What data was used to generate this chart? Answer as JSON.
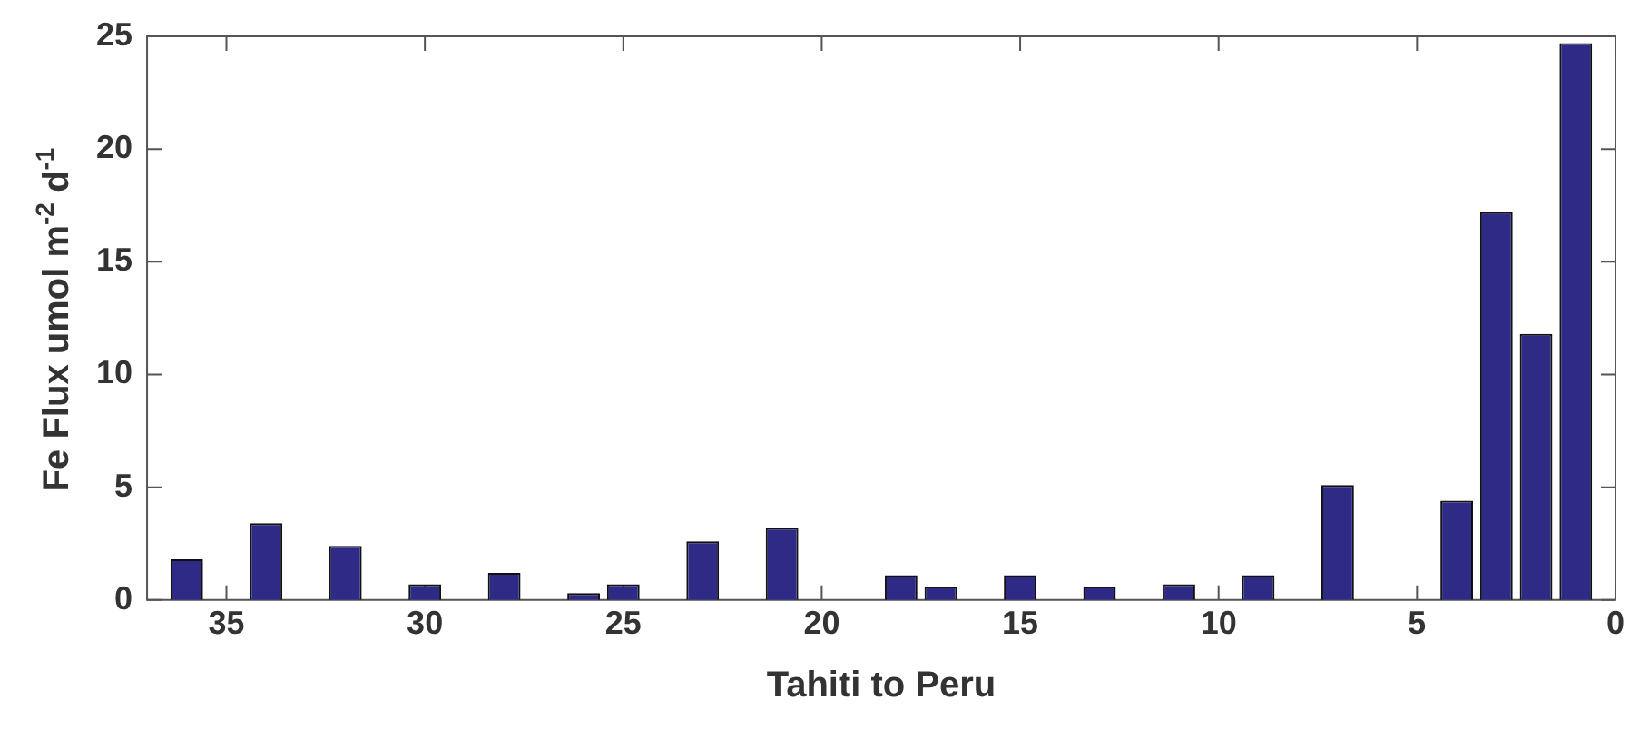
{
  "chart_data": {
    "type": "bar",
    "xlabel": "Tahiti to Peru",
    "ylabel": "Fe Flux umol m$^{-2}$ d$^{-1}$",
    "x": [
      36,
      34,
      32,
      30,
      28,
      26,
      25,
      23,
      21,
      18,
      17,
      15,
      13,
      11,
      9,
      7,
      4,
      3,
      2,
      1
    ],
    "values": [
      1.8,
      3.4,
      2.4,
      0.7,
      1.2,
      0.3,
      0.7,
      2.6,
      3.2,
      1.1,
      0.6,
      1.1,
      0.6,
      0.7,
      1.1,
      5.1,
      4.4,
      17.2,
      11.8,
      24.7
    ],
    "color": "#2e2a85",
    "xlim": [
      37,
      0
    ],
    "xticks": [
      35,
      30,
      25,
      20,
      15,
      10,
      5,
      0
    ],
    "ylim": [
      0,
      25
    ],
    "yticks": [
      0,
      5,
      10,
      15,
      20,
      25
    ],
    "grid": false
  }
}
